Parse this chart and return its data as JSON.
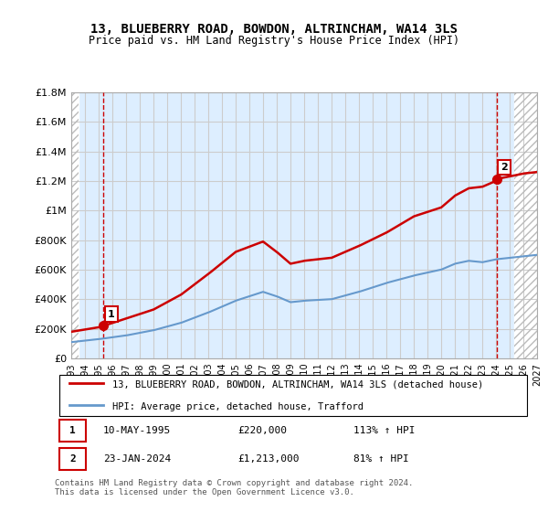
{
  "title": "13, BLUEBERRY ROAD, BOWDON, ALTRINCHAM, WA14 3LS",
  "subtitle": "Price paid vs. HM Land Registry's House Price Index (HPI)",
  "ylabel_ticks": [
    "£0",
    "£200K",
    "£400K",
    "£600K",
    "£800K",
    "£1M",
    "£1.2M",
    "£1.4M",
    "£1.6M",
    "£1.8M"
  ],
  "ylabel_values": [
    0,
    200000,
    400000,
    600000,
    800000,
    1000000,
    1200000,
    1400000,
    1600000,
    1800000
  ],
  "xmin": 1993,
  "xmax": 2027,
  "ymin": 0,
  "ymax": 1800000,
  "legend_line1": "13, BLUEBERRY ROAD, BOWDON, ALTRINCHAM, WA14 3LS (detached house)",
  "legend_line2": "HPI: Average price, detached house, Trafford",
  "sale1_label": "1",
  "sale1_date": "10-MAY-1995",
  "sale1_price": "£220,000",
  "sale1_hpi": "113% ↑ HPI",
  "sale1_year": 1995.36,
  "sale1_value": 220000,
  "sale2_label": "2",
  "sale2_date": "23-JAN-2024",
  "sale2_price": "£1,213,000",
  "sale2_hpi": "81% ↑ HPI",
  "sale2_year": 2024.06,
  "sale2_value": 1213000,
  "footer": "Contains HM Land Registry data © Crown copyright and database right 2024.\nThis data is licensed under the Open Government Licence v3.0.",
  "red_color": "#cc0000",
  "blue_color": "#6699cc",
  "hatch_color": "#cccccc",
  "grid_color": "#cccccc",
  "bg_color": "#ddeeff",
  "plot_bg": "#ffffff"
}
